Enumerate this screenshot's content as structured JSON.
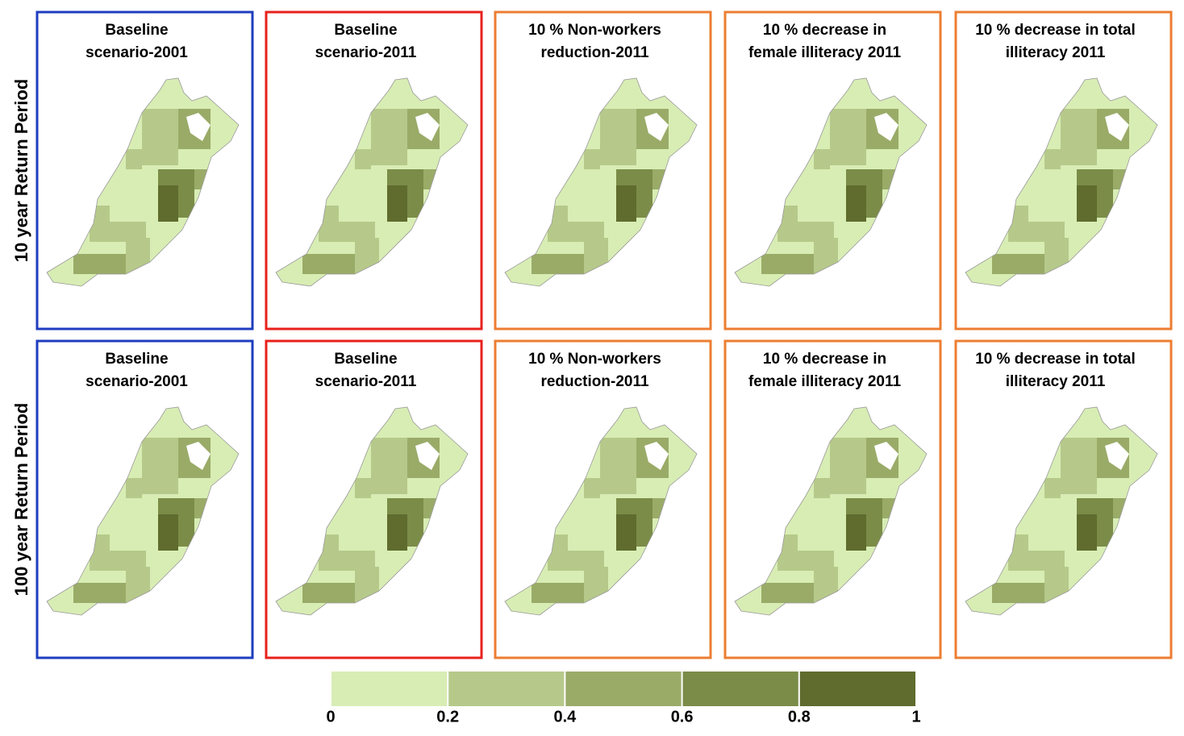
{
  "rows": [
    {
      "label": "10 year Return Period",
      "panels": [
        {
          "title": [
            "Baseline",
            "scenario-2001"
          ],
          "border": "#1f3dbf"
        },
        {
          "title": [
            "Baseline",
            "scenario-2011"
          ],
          "border": "#e8211c"
        },
        {
          "title": [
            "10 % Non-workers",
            "reduction-2011"
          ],
          "border": "#ed7d31"
        },
        {
          "title": [
            "10 % decrease in",
            "female illiteracy 2011"
          ],
          "border": "#ed7d31"
        },
        {
          "title": [
            "10 % decrease in total",
            "illiteracy 2011"
          ],
          "border": "#ed7d31"
        }
      ]
    },
    {
      "label": "100 year Return Period",
      "panels": [
        {
          "title": [
            "Baseline",
            "scenario-2001"
          ],
          "border": "#1f3dbf"
        },
        {
          "title": [
            "Baseline",
            "scenario-2011"
          ],
          "border": "#e8211c"
        },
        {
          "title": [
            "10 % Non-workers",
            "reduction-2011"
          ],
          "border": "#ed7d31"
        },
        {
          "title": [
            "10 % decrease in",
            "female illiteracy 2011"
          ],
          "border": "#ed7d31"
        },
        {
          "title": [
            "10 % decrease in total",
            "illiteracy 2011"
          ],
          "border": "#ed7d31"
        }
      ]
    }
  ],
  "legend": {
    "colors": [
      "#d8edb4",
      "#b6c98a",
      "#9aab68",
      "#7b8c48",
      "#5f6c2e"
    ],
    "ticks": [
      0,
      0.2,
      0.4,
      0.6,
      0.8,
      1
    ]
  }
}
